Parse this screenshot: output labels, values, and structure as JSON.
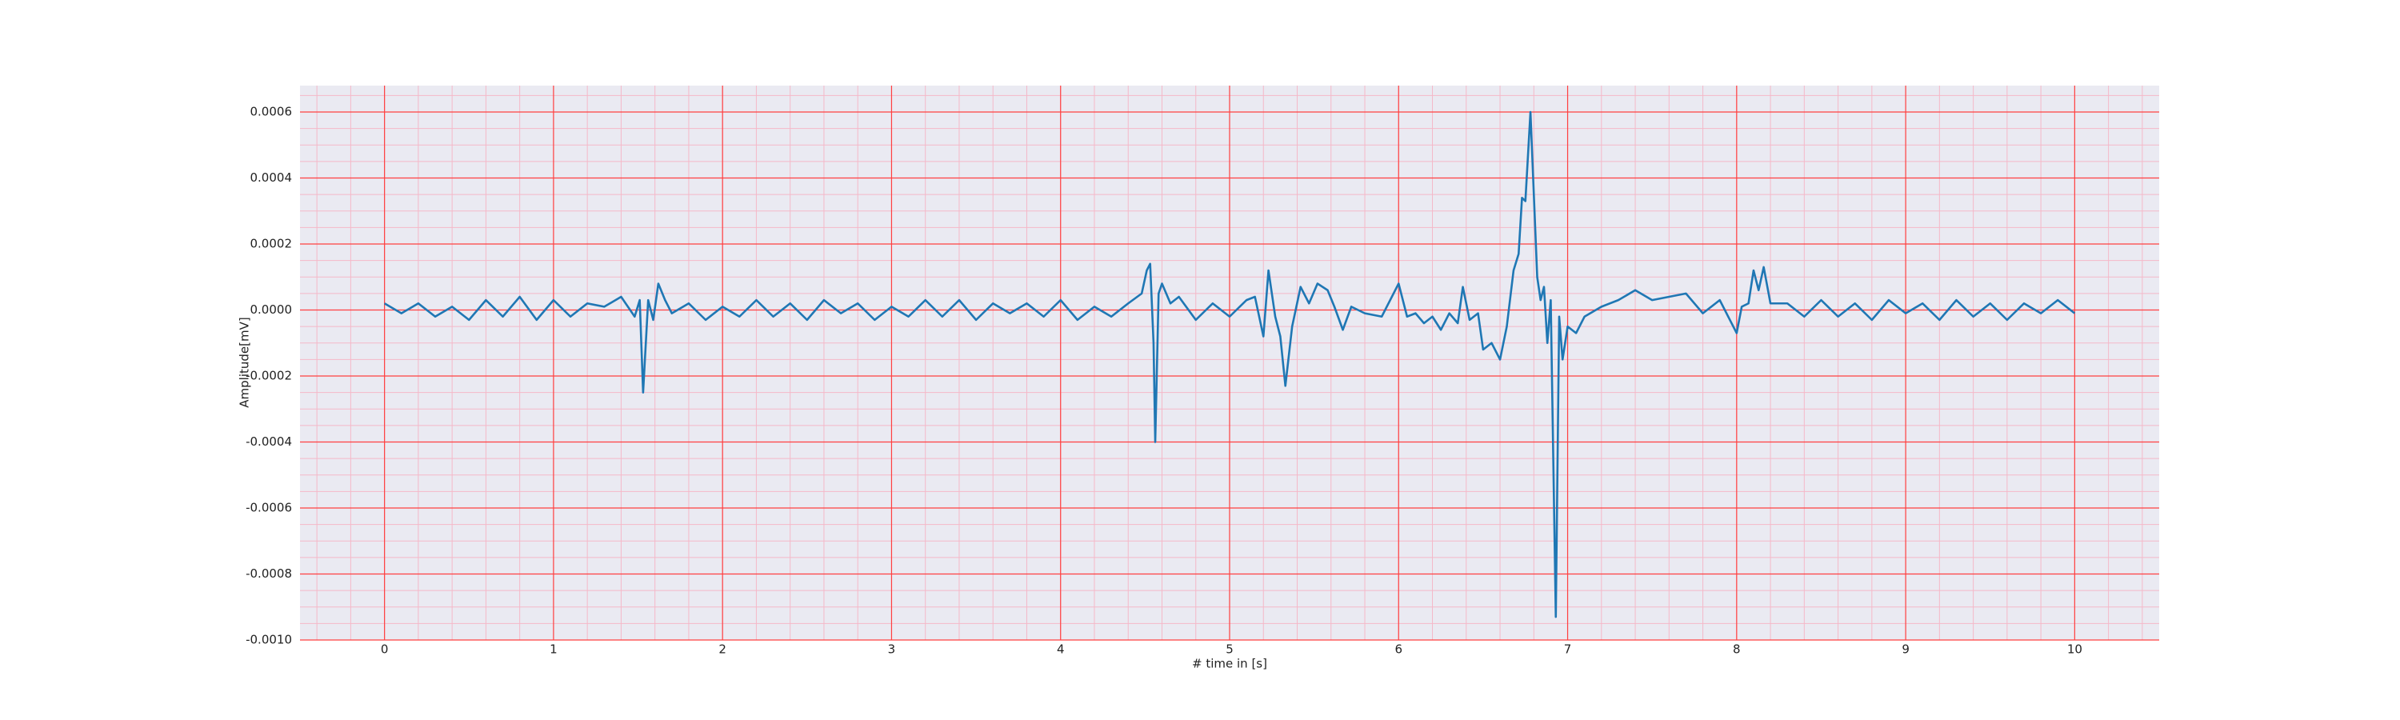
{
  "chart_data": {
    "type": "line",
    "xlabel": "# time in [s]",
    "ylabel": "Amplitude[mV]",
    "color": "#1f77b4",
    "grid": true,
    "minor_grid": true,
    "xlim": [
      -0.5,
      10.5
    ],
    "xticks": [
      0,
      1,
      2,
      3,
      4,
      5,
      6,
      7,
      8,
      9,
      10
    ],
    "ylim": [
      -0.001,
      0.00068
    ],
    "yticks": [
      {
        "value": -0.001,
        "label": "-0.0010"
      },
      -0.0008,
      -0.0006,
      -0.0004,
      -0.0002,
      {
        "value": 0,
        "label": "0.0000"
      },
      0.0002,
      0.0004,
      0.0006
    ],
    "x": [
      0,
      0.1,
      0.2,
      0.3,
      0.4,
      0.5,
      0.6,
      0.7,
      0.8,
      0.9,
      1,
      1.1,
      1.2,
      1.3,
      1.4,
      1.48,
      1.51,
      1.53,
      1.56,
      1.59,
      1.62,
      1.66,
      1.7,
      1.8,
      1.9,
      2,
      2.1,
      2.2,
      2.3,
      2.4,
      2.5,
      2.6,
      2.7,
      2.8,
      2.9,
      3,
      3.1,
      3.2,
      3.3,
      3.4,
      3.5,
      3.6,
      3.7,
      3.8,
      3.9,
      4,
      4.1,
      4.2,
      4.3,
      4.4,
      4.48,
      4.51,
      4.53,
      4.55,
      4.56,
      4.58,
      4.6,
      4.65,
      4.7,
      4.8,
      4.9,
      5,
      5.1,
      5.15,
      5.2,
      5.23,
      5.27,
      5.3,
      5.33,
      5.37,
      5.42,
      5.47,
      5.52,
      5.58,
      5.62,
      5.67,
      5.72,
      5.8,
      5.9,
      6,
      6.05,
      6.1,
      6.15,
      6.2,
      6.25,
      6.3,
      6.35,
      6.38,
      6.42,
      6.47,
      6.5,
      6.55,
      6.6,
      6.64,
      6.68,
      6.71,
      6.73,
      6.75,
      6.78,
      6.8,
      6.82,
      6.84,
      6.86,
      6.88,
      6.9,
      6.93,
      6.95,
      6.97,
      7,
      7.05,
      7.1,
      7.2,
      7.3,
      7.4,
      7.5,
      7.6,
      7.7,
      7.8,
      7.9,
      8,
      8.03,
      8.07,
      8.1,
      8.13,
      8.16,
      8.2,
      8.3,
      8.4,
      8.5,
      8.6,
      8.7,
      8.8,
      8.9,
      9,
      9.1,
      9.2,
      9.3,
      9.4,
      9.5,
      9.6,
      9.7,
      9.8,
      9.9,
      10
    ],
    "values": [
      2e-05,
      -1e-05,
      2e-05,
      -2e-05,
      1e-05,
      -3e-05,
      3e-05,
      -2e-05,
      4e-05,
      -3e-05,
      3e-05,
      -2e-05,
      2e-05,
      1e-05,
      4e-05,
      -2e-05,
      3e-05,
      -0.00025,
      3e-05,
      -3e-05,
      8e-05,
      3e-05,
      -1e-05,
      2e-05,
      -3e-05,
      1e-05,
      -2e-05,
      3e-05,
      -2e-05,
      2e-05,
      -3e-05,
      3e-05,
      -1e-05,
      2e-05,
      -3e-05,
      1e-05,
      -2e-05,
      3e-05,
      -2e-05,
      3e-05,
      -3e-05,
      2e-05,
      -1e-05,
      2e-05,
      -2e-05,
      3e-05,
      -3e-05,
      1e-05,
      -2e-05,
      2e-05,
      5e-05,
      0.00012,
      0.00014,
      -0.0001,
      -0.0004,
      5e-05,
      8e-05,
      2e-05,
      4e-05,
      -3e-05,
      2e-05,
      -2e-05,
      3e-05,
      4e-05,
      -8e-05,
      0.00012,
      -2e-05,
      -8e-05,
      -0.00023,
      -5e-05,
      7e-05,
      2e-05,
      8e-05,
      6e-05,
      1e-05,
      -6e-05,
      1e-05,
      -1e-05,
      -2e-05,
      8e-05,
      -2e-05,
      -1e-05,
      -4e-05,
      -2e-05,
      -6e-05,
      -1e-05,
      -4e-05,
      7e-05,
      -3e-05,
      -1e-05,
      -0.00012,
      -0.0001,
      -0.00015,
      -5e-05,
      0.00012,
      0.00017,
      0.00034,
      0.00033,
      0.0006,
      0.00035,
      0.0001,
      3e-05,
      7e-05,
      -0.0001,
      3e-05,
      -0.00093,
      -2e-05,
      -0.00015,
      -5e-05,
      -7e-05,
      -2e-05,
      1e-05,
      3e-05,
      6e-05,
      3e-05,
      4e-05,
      5e-05,
      -1e-05,
      3e-05,
      -7e-05,
      1e-05,
      2e-05,
      0.00012,
      6e-05,
      0.00013,
      2e-05,
      2e-05,
      -2e-05,
      3e-05,
      -2e-05,
      2e-05,
      -3e-05,
      3e-05,
      -1e-05,
      2e-05,
      -3e-05,
      3e-05,
      -2e-05,
      2e-05,
      -3e-05,
      2e-05,
      -1e-05,
      3e-05,
      -1e-05
    ]
  }
}
